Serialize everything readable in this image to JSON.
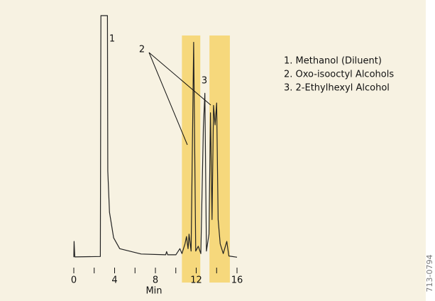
{
  "chart_data": {
    "type": "line",
    "x_label": "Min",
    "x": [
      0,
      0.03,
      0.1,
      2.6,
      2.66,
      3.3,
      3.33,
      3.5,
      3.9,
      4.5,
      6.6,
      9.0,
      9.1,
      9.2,
      10.0,
      10.4,
      10.6,
      10.9,
      11.05,
      11.2,
      11.3,
      11.5,
      11.75,
      11.95,
      12.2,
      12.45,
      12.7,
      12.85,
      13.0,
      13.25,
      13.4,
      13.55,
      13.7,
      13.85,
      14.0,
      14.15,
      14.35,
      14.65,
      15.0,
      15.2,
      16.0
    ],
    "values": [
      0.5,
      7,
      0.6,
      0.8,
      100,
      100,
      36,
      19,
      8.5,
      4,
      1.8,
      1.5,
      2.8,
      1.5,
      1.5,
      4,
      2,
      6,
      9,
      4,
      10,
      3,
      89,
      3,
      5,
      2,
      54,
      68,
      3,
      10,
      60,
      16,
      63,
      55,
      64,
      16,
      6,
      2,
      7,
      1,
      0.5
    ],
    "color": "#222222",
    "xlim": [
      0,
      16
    ],
    "ylim": [
      0,
      100
    ],
    "xticks": [
      0,
      4,
      8,
      12,
      16
    ],
    "xminor_ticks": [
      2,
      6,
      10,
      14
    ],
    "highlight_bands": [
      [
        10.6,
        12.4
      ],
      [
        13.3,
        15.3
      ]
    ],
    "band_color": "#f6d87c",
    "background": "#f7f2e2",
    "peak_labels": [
      "1",
      "2",
      "3"
    ],
    "legend_items": [
      "1. Methanol (Diluent)",
      "2. Oxo-isooctyl Alcohols",
      "3. 2-Ethylhexyl Alcohol"
    ],
    "code": "713-0794"
  }
}
